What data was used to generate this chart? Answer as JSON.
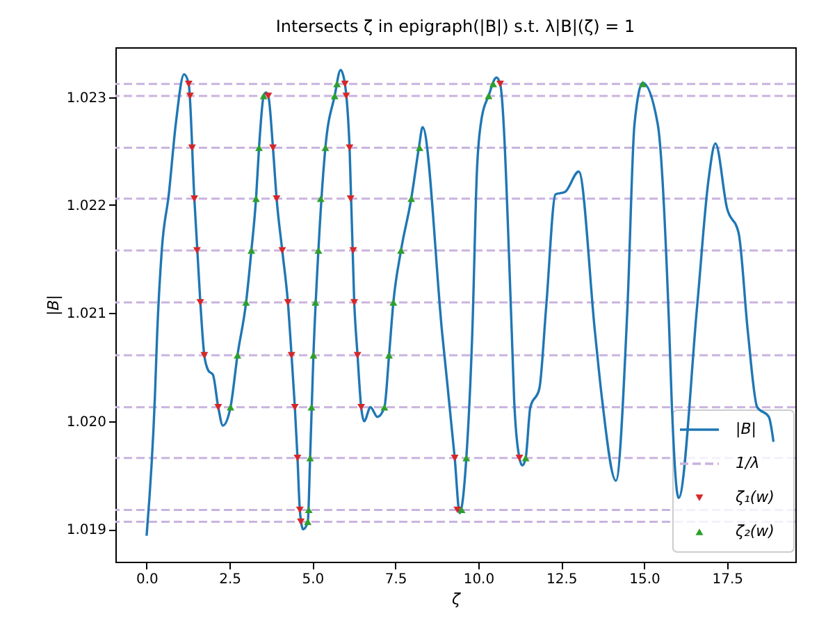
{
  "chart_data": {
    "type": "line",
    "title": "Intersects ζ in epigraph(|B|) s.t. λ|B|(ζ) = 1",
    "xlabel": "ζ",
    "ylabel": "|B|",
    "xlim": [
      -0.94,
      19.56
    ],
    "ylim": [
      1.0187,
      1.02346
    ],
    "xticks": [
      {
        "value": 0,
        "label": "0.0"
      },
      {
        "value": 2.5,
        "label": "2.5"
      },
      {
        "value": 5,
        "label": "5.0"
      },
      {
        "value": 7.5,
        "label": "7.5"
      },
      {
        "value": 10,
        "label": "10.0"
      },
      {
        "value": 12.5,
        "label": "12.5"
      },
      {
        "value": 15,
        "label": "15.0"
      },
      {
        "value": 17.5,
        "label": "17.5"
      }
    ],
    "yticks": [
      1.019,
      {
        "value": 1.02,
        "label": "1.020"
      },
      1.021,
      1.022,
      1.023
    ],
    "grid": false,
    "legend": "bottom right",
    "series": [
      {
        "name": "|B|",
        "color": "#1f77b4",
        "marker": "none",
        "line_style": "solid",
        "x": [
          0,
          0.25,
          0.32,
          0.46,
          0.67,
          0.88,
          1.13,
          1.27,
          1.44,
          1.62,
          1.74,
          1.86,
          2.0,
          2.16,
          2.3,
          2.53,
          2.74,
          3.0,
          3.16,
          3.3,
          3.39,
          3.53,
          3.6,
          3.67,
          3.81,
          3.92,
          4.09,
          4.26,
          4.37,
          4.47,
          4.55,
          4.62,
          4.72,
          4.86,
          4.93,
          5.03,
          5.18,
          5.39,
          5.67,
          5.85,
          5.98,
          6.12,
          6.26,
          6.36,
          6.47,
          6.56,
          6.75,
          6.96,
          7.17,
          7.31,
          7.44,
          7.67,
          7.98,
          8.21,
          8.32,
          8.91,
          9.29,
          9.44,
          9.64,
          9.82,
          9.96,
          10.1,
          10.31,
          10.55,
          10.66,
          11.01,
          11.08,
          11.24,
          11.33,
          11.43,
          11.57,
          11.84,
          12.05,
          12.33,
          12.61,
          13.03,
          13.52,
          13.73,
          14.15,
          14.5,
          14.71,
          14.96,
          15.41,
          15.76,
          15.83,
          16.04,
          16.6,
          16.94,
          17.15,
          17.5,
          17.85,
          18.13,
          18.41,
          18.76,
          18.9
        ],
        "values": [
          1.01894,
          1.02022,
          1.02082,
          1.02159,
          1.0221,
          1.02275,
          1.02321,
          1.02312,
          1.02206,
          1.0211,
          1.02061,
          1.02047,
          1.02043,
          1.02013,
          1.01996,
          1.02013,
          1.02061,
          1.0211,
          1.02158,
          1.02206,
          1.02253,
          1.02301,
          1.02304,
          1.02301,
          1.02253,
          1.02206,
          1.02158,
          1.0211,
          1.02061,
          1.02013,
          1.01966,
          1.01918,
          1.019,
          1.01907,
          1.01966,
          1.02061,
          1.02158,
          1.02253,
          1.02301,
          1.02325,
          1.02312,
          1.02253,
          1.0211,
          1.02061,
          1.02013,
          1.02,
          1.02013,
          1.02004,
          1.02013,
          1.02061,
          1.0211,
          1.02158,
          1.02206,
          1.02253,
          1.02272,
          1.02082,
          1.01966,
          1.01915,
          1.01966,
          1.02082,
          1.02232,
          1.0228,
          1.02301,
          1.02318,
          1.02312,
          1.02082,
          1.02021,
          1.01966,
          1.01959,
          1.01966,
          1.02013,
          1.0203,
          1.02107,
          1.0221,
          1.02212,
          1.02231,
          1.02082,
          1.02021,
          1.01945,
          1.02107,
          1.02275,
          1.02313,
          1.02275,
          1.02082,
          1.0202,
          1.01929,
          1.02107,
          1.02223,
          1.02257,
          1.02197,
          1.02174,
          1.02082,
          1.02013,
          1.02004,
          1.01981
        ]
      },
      {
        "name": "ζ₁(w)",
        "type": "scatter",
        "color": "#d62728",
        "marker": "triangle-down",
        "x": [
          1.27,
          1.31,
          1.37,
          1.44,
          1.52,
          1.62,
          1.74,
          2.16,
          3.67,
          3.81,
          3.92,
          4.09,
          4.26,
          4.37,
          4.47,
          4.55,
          4.62,
          4.65,
          5.98,
          6.02,
          6.12,
          6.15,
          6.23,
          6.26,
          6.36,
          6.47,
          9.29,
          9.37,
          10.66,
          11.24
        ],
        "values": [
          1.02312,
          1.02301,
          1.02253,
          1.02206,
          1.02158,
          1.0211,
          1.02061,
          1.02013,
          1.02301,
          1.02253,
          1.02206,
          1.02158,
          1.0211,
          1.02061,
          1.02013,
          1.01966,
          1.01918,
          1.01907,
          1.02312,
          1.02301,
          1.02253,
          1.02206,
          1.02158,
          1.0211,
          1.02061,
          1.02013,
          1.01966,
          1.01918,
          1.02312,
          1.01966
        ]
      },
      {
        "name": "ζ₂(w)",
        "type": "scatter",
        "color": "#2ca02c",
        "marker": "triangle",
        "x": [
          2.53,
          2.74,
          3.0,
          3.16,
          3.3,
          3.39,
          3.53,
          4.86,
          4.89,
          4.93,
          4.97,
          5.03,
          5.09,
          5.18,
          5.25,
          5.39,
          5.67,
          5.74,
          7.17,
          7.31,
          7.44,
          7.67,
          7.98,
          8.23,
          9.5,
          9.64,
          10.31,
          10.45,
          11.43,
          14.96
        ],
        "values": [
          1.02013,
          1.02061,
          1.0211,
          1.02158,
          1.02206,
          1.02253,
          1.02301,
          1.01907,
          1.01918,
          1.01966,
          1.02013,
          1.02061,
          1.0211,
          1.02158,
          1.02206,
          1.02253,
          1.02301,
          1.02312,
          1.02013,
          1.02061,
          1.0211,
          1.02158,
          1.02206,
          1.02253,
          1.01918,
          1.01966,
          1.02301,
          1.02312,
          1.01966,
          1.02312
        ]
      }
    ],
    "ref_lines": [
      {
        "axis": "y",
        "value": 1.02312,
        "label": "1/λ",
        "color": "#c9b3de",
        "line_style": "dashed"
      },
      {
        "axis": "y",
        "value": 1.02301,
        "color": "#c9b3de",
        "line_style": "dashed"
      },
      {
        "axis": "y",
        "value": 1.02253,
        "color": "#c9b3de",
        "line_style": "dashed"
      },
      {
        "axis": "y",
        "value": 1.02206,
        "color": "#c9b3de",
        "line_style": "dashed"
      },
      {
        "axis": "y",
        "value": 1.02158,
        "color": "#c9b3de",
        "line_style": "dashed"
      },
      {
        "axis": "y",
        "value": 1.0211,
        "color": "#c9b3de",
        "line_style": "dashed"
      },
      {
        "axis": "y",
        "value": 1.02061,
        "color": "#c9b3de",
        "line_style": "dashed"
      },
      {
        "axis": "y",
        "value": 1.02013,
        "color": "#c9b3de",
        "line_style": "dashed"
      },
      {
        "axis": "y",
        "value": 1.01966,
        "color": "#c9b3de",
        "line_style": "dashed"
      },
      {
        "axis": "y",
        "value": 1.01918,
        "color": "#c9b3de",
        "line_style": "dashed"
      },
      {
        "axis": "y",
        "value": 1.01907,
        "color": "#c9b3de",
        "line_style": "dashed"
      }
    ]
  }
}
